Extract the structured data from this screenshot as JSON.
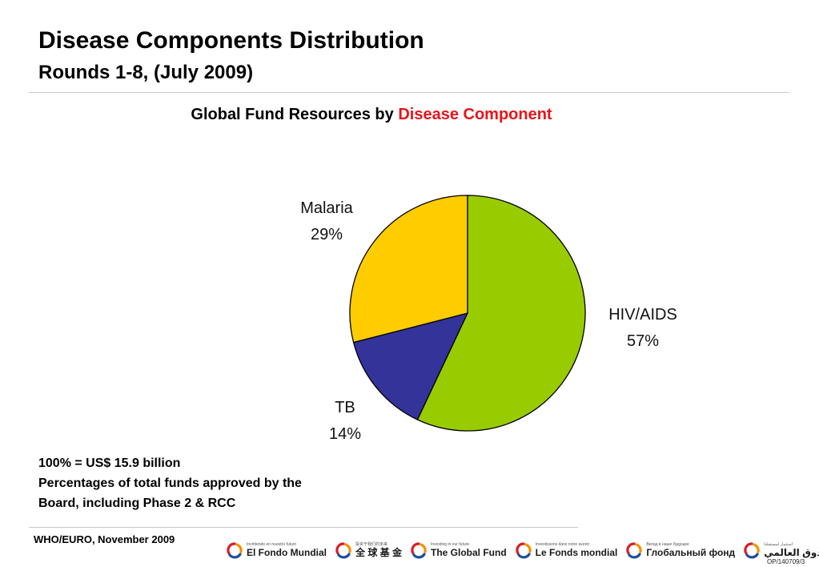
{
  "header": {
    "title": "Disease Components Distribution",
    "subtitle": "Rounds 1-8, (July 2009)"
  },
  "chart_data": {
    "type": "pie",
    "title_prefix": "Global Fund Resources by ",
    "title_highlight": "Disease Component",
    "start_angle_deg": 0,
    "direction": "clockwise",
    "slices": [
      {
        "label": "HIV/AIDS",
        "percent_label": "57%",
        "value": 57,
        "color": "#99cc00"
      },
      {
        "label": "TB",
        "percent_label": "14%",
        "value": 14,
        "color": "#333399"
      },
      {
        "label": "Malaria",
        "percent_label": "29%",
        "value": 29,
        "color": "#ffcc00"
      }
    ]
  },
  "footnote": {
    "line1": "100% = US$ 15.9 billion",
    "line2": "Percentages of total funds approved by the",
    "line3": "Board, including Phase 2 & RCC"
  },
  "footer": {
    "source": "WHO/EURO, November 2009",
    "reference": "OP/140709/3",
    "logos": [
      {
        "tagline": "Invirtiendo en nuestro futuro",
        "name": "El Fondo Mundial",
        "icon": "global-fund-swirl-icon"
      },
      {
        "tagline": "投资于我们的未来",
        "name": "全 球 基 金",
        "icon": "global-fund-swirl-icon"
      },
      {
        "tagline": "Investing in our future",
        "name": "The Global Fund",
        "icon": "global-fund-swirl-icon"
      },
      {
        "tagline": "Investissons dans notre avenir",
        "name": "Le Fonds mondial",
        "icon": "global-fund-swirl-icon"
      },
      {
        "tagline": "Вклад в наше будущее",
        "name": "Глобальный фонд",
        "icon": "global-fund-swirl-icon"
      },
      {
        "tagline": "استثمار لمستقبلنا",
        "name": "الصندوق العالمي",
        "icon": "global-fund-swirl-icon"
      }
    ],
    "colors": {
      "swirl_blue": "#1f4e9c",
      "swirl_red": "#d81e28",
      "swirl_orange": "#f39200"
    }
  }
}
